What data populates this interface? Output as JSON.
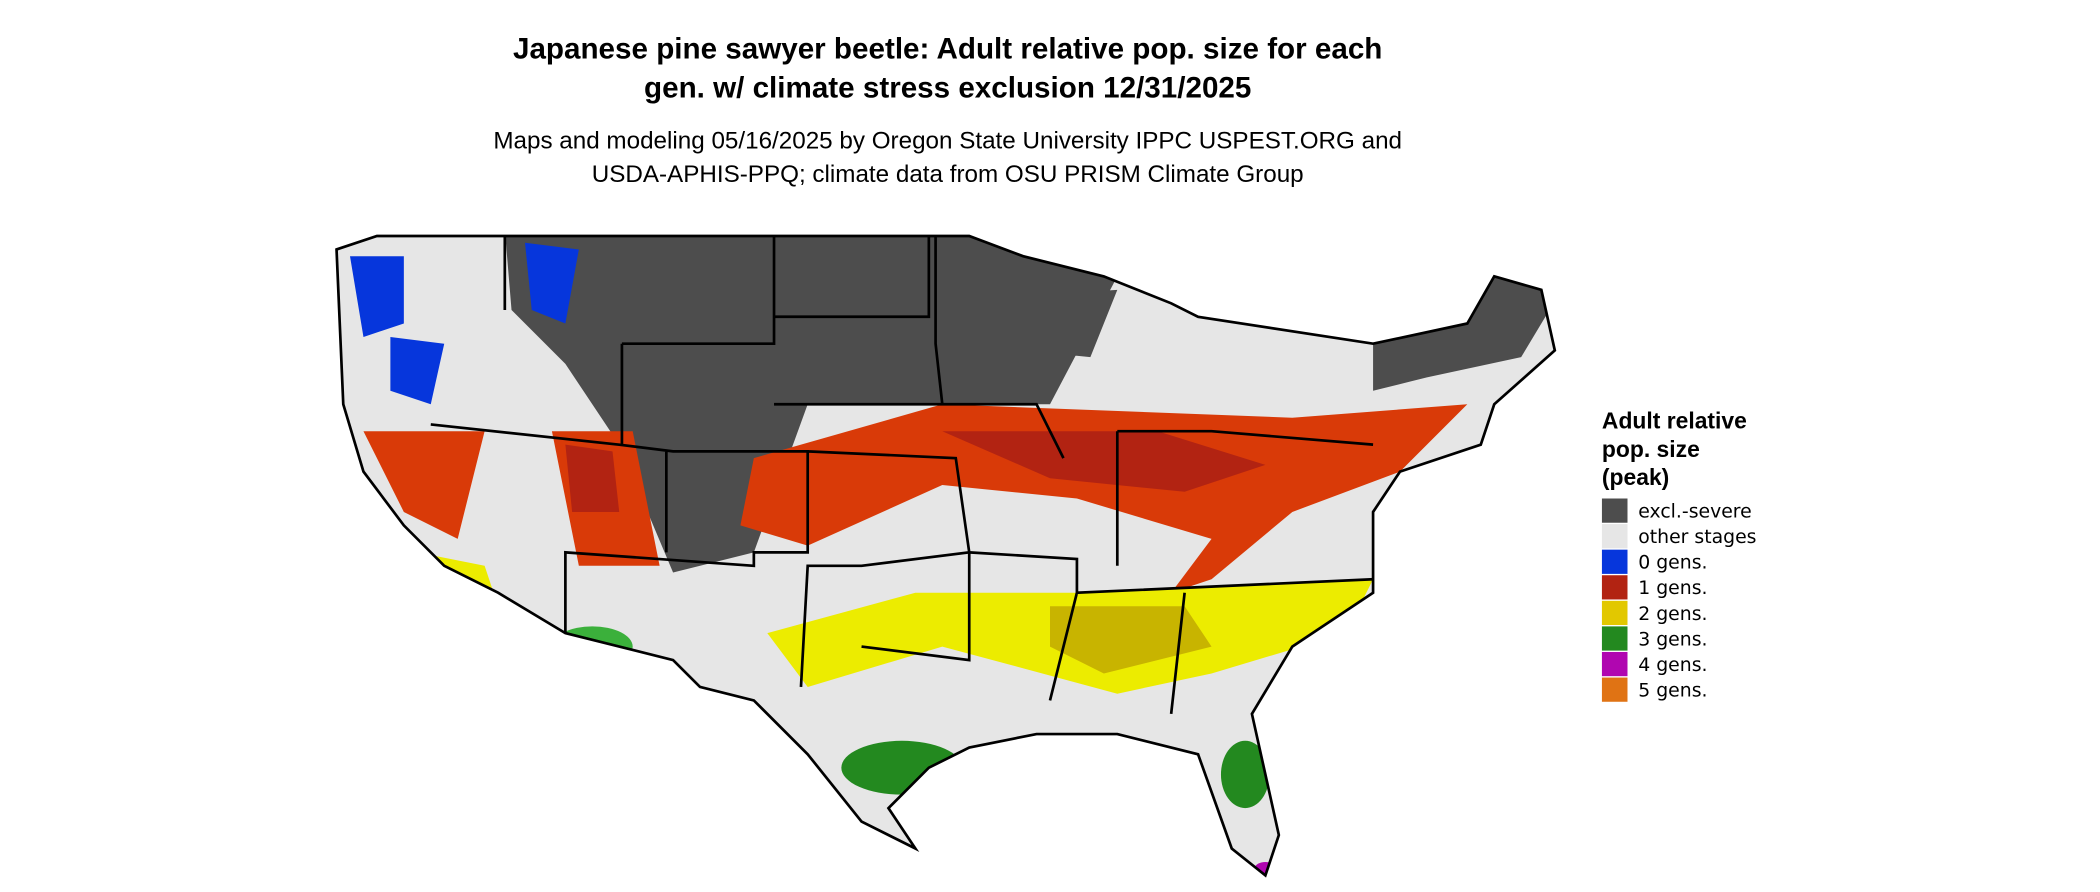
{
  "title_lines": [
    "Japanese pine sawyer beetle: Adult relative pop. size for each",
    "gen. w/ climate stress exclusion 12/31/2025"
  ],
  "subtitle_lines": [
    "Maps and modeling 05/16/2025 by Oregon State University IPPC USPEST.ORG and",
    "USDA-APHIS-PPQ; climate data from OSU PRISM Climate Group"
  ],
  "legend": {
    "title_lines": [
      "Adult relative",
      "pop. size",
      "(peak)"
    ],
    "items": [
      {
        "label": "excl.-severe",
        "color": "#4d4d4d"
      },
      {
        "label": "other stages",
        "color": "#e6e6e6"
      },
      {
        "label": "0 gens.",
        "color": "#0636dc"
      },
      {
        "label": "1 gens.",
        "color": "#b22312"
      },
      {
        "label": "2 gens.",
        "color": "#e2c800"
      },
      {
        "label": "3 gens.",
        "color": "#23891f"
      },
      {
        "label": "4 gens.",
        "color": "#b006b0"
      },
      {
        "label": "5 gens.",
        "color": "#e07314"
      }
    ]
  }
}
